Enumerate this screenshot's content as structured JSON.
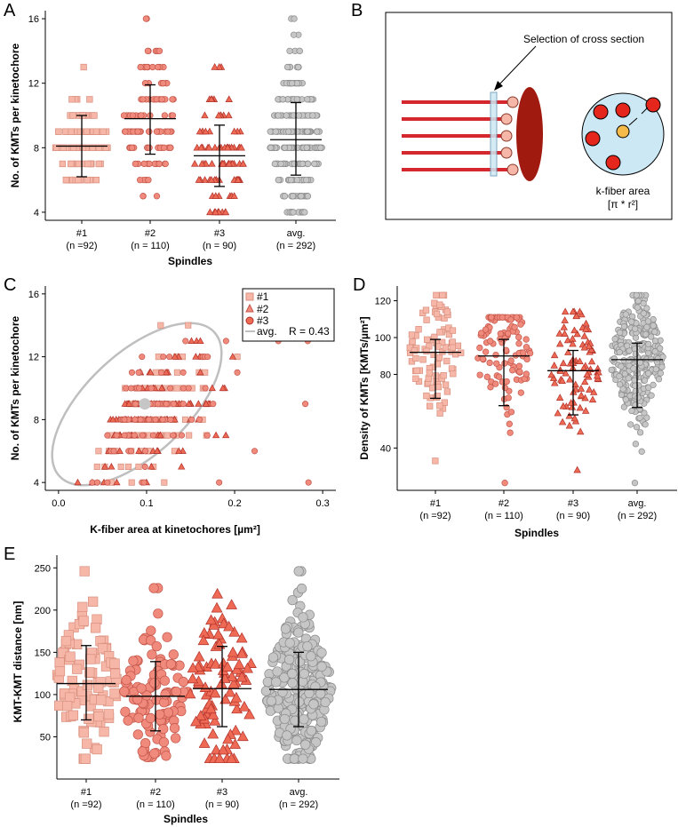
{
  "colors": {
    "s1_fill": "#f6b7a8",
    "s1_stroke": "#d98f7e",
    "s2_fill": "#f08a7c",
    "s2_stroke": "#c4574b",
    "s3_fill": "#ef6a55",
    "s3_stroke": "#b0322a",
    "avg_fill": "#c6c6c6",
    "avg_stroke": "#8c8c8c",
    "fiber": "#d5272e",
    "kinetochore": "#a11a10",
    "cyan": "#cde8f5",
    "yellow": "#f4bb4a"
  },
  "panels": {
    "A": {
      "label": "A"
    },
    "B": {
      "label": "B",
      "annotation": "Selection of cross section",
      "area_label": "k-fiber area",
      "formula": "[π * r²]"
    },
    "C": {
      "label": "C"
    },
    "D": {
      "label": "D"
    },
    "E": {
      "label": "E"
    }
  },
  "chart_data": [
    {
      "id": "A",
      "type": "scatter",
      "title": "",
      "xlabel": "Spindles",
      "ylabel": "No. of KMTs per kinetochore",
      "ylim": [
        3.5,
        16.5
      ],
      "yticks": [
        4,
        8,
        12,
        16
      ],
      "groups": [
        {
          "name": "#1",
          "n_label": "(n =92)",
          "mean": 8.1,
          "sd_low": 6.2,
          "sd_high": 10.0,
          "min": 6,
          "max": 13,
          "center": 8
        },
        {
          "name": "#2",
          "n_label": "(n = 110)",
          "mean": 9.8,
          "sd_low": 7.6,
          "sd_high": 11.9,
          "min": 5,
          "max": 16,
          "center": 10
        },
        {
          "name": "#3",
          "n_label": "(n = 90)",
          "mean": 7.5,
          "sd_low": 5.6,
          "sd_high": 9.4,
          "min": 4,
          "max": 13,
          "center": 7
        },
        {
          "name": "avg.",
          "n_label": "(n = 292)",
          "mean": 8.5,
          "sd_low": 6.3,
          "sd_high": 10.8,
          "min": 4,
          "max": 16,
          "center": 8
        }
      ]
    },
    {
      "id": "C",
      "type": "scatter",
      "xlabel": "K-fiber area at kinetochores [µm²]",
      "ylabel": "No. of KMTs per kinetochore",
      "xlim": [
        -0.015,
        0.315
      ],
      "ylim": [
        3.5,
        16.5
      ],
      "xticks": [
        "0.0",
        "0.1",
        "0.2",
        "0.3"
      ],
      "yticks": [
        4,
        8,
        12,
        16
      ],
      "legend": [
        {
          "label": "#1"
        },
        {
          "label": "#2"
        },
        {
          "label": "#3"
        },
        {
          "label": "avg."
        }
      ],
      "r_label": "R = 0.43",
      "centroid": [
        0.098,
        9.0
      ]
    },
    {
      "id": "D",
      "type": "scatter",
      "xlabel": "Spindles",
      "ylabel": "Density of KMTs [KMTs/µm²]",
      "ylim": [
        17,
        128
      ],
      "yticks": [
        40,
        80,
        100,
        120
      ],
      "groups": [
        {
          "name": "#1",
          "n_label": "(n =92)",
          "mean": 92,
          "sd_low": 67,
          "sd_high": 99,
          "min": 33,
          "max": 123
        },
        {
          "name": "#2",
          "n_label": "(n = 110)",
          "mean": 90,
          "sd_low": 63,
          "sd_high": 99,
          "min": 21,
          "max": 111
        },
        {
          "name": "#3",
          "n_label": "(n = 90)",
          "mean": 82,
          "sd_low": 58,
          "sd_high": 93,
          "min": 28,
          "max": 114
        },
        {
          "name": "avg.",
          "n_label": "(n = 292)",
          "mean": 88,
          "sd_low": 62,
          "sd_high": 97,
          "min": 21,
          "max": 123
        }
      ]
    },
    {
      "id": "E",
      "type": "scatter",
      "xlabel": "Spindles",
      "ylabel": "KMT-KMT distance [nm]",
      "ylim": [
        0,
        265
      ],
      "yticks": [
        50,
        100,
        150,
        200,
        250
      ],
      "groups": [
        {
          "name": "#1",
          "n_label": "(n =92)",
          "mean": 113,
          "sd_low": 70,
          "sd_high": 158,
          "min": 24,
          "max": 246
        },
        {
          "name": "#2",
          "n_label": "(n = 110)",
          "mean": 98,
          "sd_low": 57,
          "sd_high": 139,
          "min": 26,
          "max": 226
        },
        {
          "name": "#3",
          "n_label": "(n = 90)",
          "mean": 107,
          "sd_low": 62,
          "sd_high": 157,
          "min": 24,
          "max": 219
        },
        {
          "name": "avg.",
          "n_label": "(n = 292)",
          "mean": 106,
          "sd_low": 62,
          "sd_high": 150,
          "min": 24,
          "max": 246
        }
      ]
    }
  ]
}
